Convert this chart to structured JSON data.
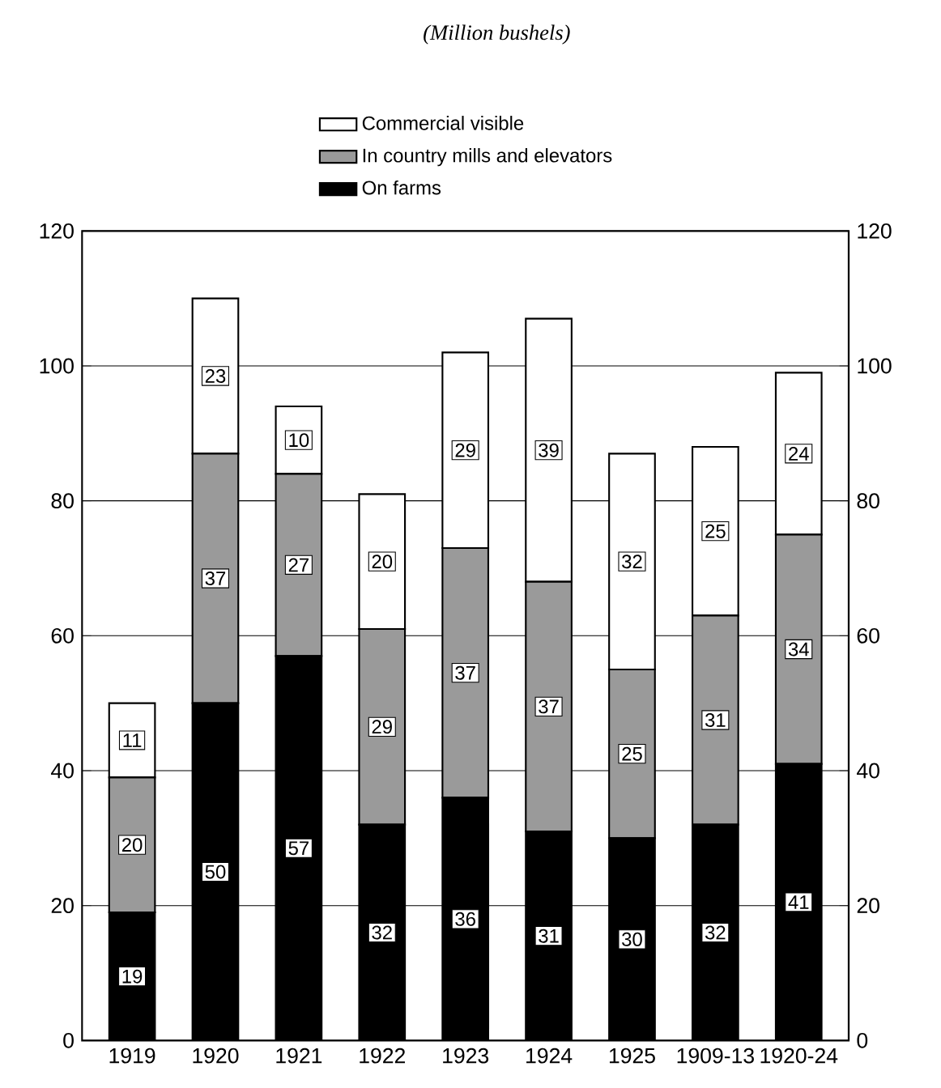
{
  "chart_data": {
    "type": "bar",
    "stacked": true,
    "subtitle": "(Million bushels)",
    "categories": [
      "1919",
      "1920",
      "1921",
      "1922",
      "1923",
      "1924",
      "1925",
      "1909-13",
      "1920-24"
    ],
    "series": [
      {
        "name": "On farms",
        "color": "#000000",
        "values": [
          19,
          50,
          57,
          32,
          36,
          31,
          30,
          32,
          41
        ]
      },
      {
        "name": "In country mills and elevators",
        "color": "#9a9a9a",
        "values": [
          20,
          37,
          27,
          29,
          37,
          37,
          25,
          31,
          34
        ]
      },
      {
        "name": "Commercial visible",
        "color": "#ffffff",
        "values": [
          11,
          23,
          10,
          20,
          29,
          39,
          32,
          25,
          24
        ]
      }
    ],
    "ylim": [
      0,
      120
    ],
    "yticks": [
      0,
      20,
      40,
      60,
      80,
      100,
      120
    ],
    "y2lim": [
      0,
      120
    ],
    "y2ticks": [
      0,
      20,
      40,
      60,
      80,
      100,
      120
    ],
    "grid": "y",
    "legend": "top",
    "data_labels": true
  }
}
